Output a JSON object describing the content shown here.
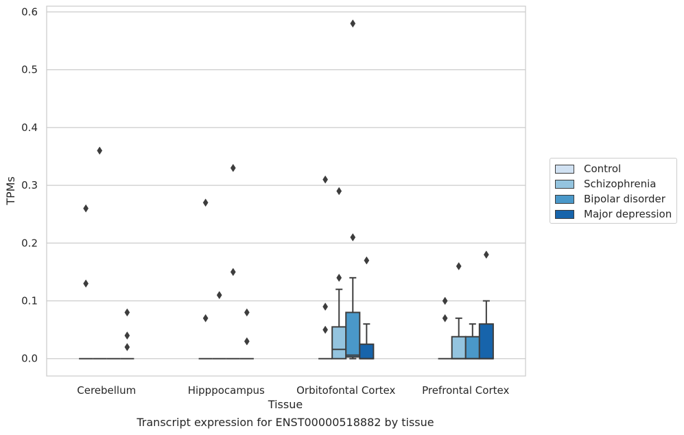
{
  "caption": "Transcript expression for ENST00000518882 by tissue",
  "chart_data": {
    "type": "boxplot",
    "xlabel": "Tissue",
    "ylabel": "TPMs",
    "ylim": [
      -0.03,
      0.61
    ],
    "yticks": [
      0.0,
      0.1,
      0.2,
      0.3,
      0.4,
      0.5,
      0.6
    ],
    "ytick_labels": [
      "0.0",
      "0.1",
      "0.2",
      "0.3",
      "0.4",
      "0.5",
      "0.6"
    ],
    "grid": "horizontal",
    "legend_position": "outside-right",
    "categories": [
      "Cerebellum",
      "Hipppocampus",
      "Orbitofontal Cortex",
      "Prefrontal Cortex"
    ],
    "series": [
      {
        "name": "Control",
        "color": "#d0e1f2",
        "boxes": [
          {
            "q1": 0,
            "median": 0,
            "q3": 0,
            "whislo": 0,
            "whishi": 0,
            "fliers": [
              0.13,
              0.26
            ]
          },
          {
            "q1": 0,
            "median": 0,
            "q3": 0,
            "whislo": 0,
            "whishi": 0,
            "fliers": [
              0.07,
              0.27
            ]
          },
          {
            "q1": 0,
            "median": 0,
            "q3": 0,
            "whislo": 0,
            "whishi": 0,
            "fliers": [
              0.05,
              0.09,
              0.31
            ]
          },
          {
            "q1": 0,
            "median": 0,
            "q3": 0,
            "whislo": 0,
            "whishi": 0,
            "fliers": [
              0.07,
              0.1
            ]
          }
        ]
      },
      {
        "name": "Schizophrenia",
        "color": "#94c4df",
        "boxes": [
          {
            "q1": 0,
            "median": 0,
            "q3": 0,
            "whislo": 0,
            "whishi": 0,
            "fliers": [
              0.36
            ]
          },
          {
            "q1": 0,
            "median": 0,
            "q3": 0,
            "whislo": 0,
            "whishi": 0,
            "fliers": [
              0.11
            ]
          },
          {
            "q1": 0,
            "median": 0.016,
            "q3": 0.055,
            "whislo": 0,
            "whishi": 0.12,
            "fliers": [
              0.14,
              0.29
            ]
          },
          {
            "q1": 0,
            "median": 0,
            "q3": 0.038,
            "whislo": 0,
            "whishi": 0.07,
            "fliers": [
              0.16
            ]
          }
        ]
      },
      {
        "name": "Bipolar disorder",
        "color": "#4a98c9",
        "boxes": [
          {
            "q1": 0,
            "median": 0,
            "q3": 0,
            "whislo": 0,
            "whishi": 0,
            "fliers": []
          },
          {
            "q1": 0,
            "median": 0,
            "q3": 0,
            "whislo": 0,
            "whishi": 0,
            "fliers": [
              0.15,
              0.33
            ]
          },
          {
            "q1": 0.003,
            "median": 0.006,
            "q3": 0.08,
            "whislo": 0,
            "whishi": 0.14,
            "fliers": [
              0.21,
              0.58
            ]
          },
          {
            "q1": 0,
            "median": 0,
            "q3": 0.038,
            "whislo": 0,
            "whishi": 0.06,
            "fliers": []
          }
        ]
      },
      {
        "name": "Major depression",
        "color": "#1764ab",
        "boxes": [
          {
            "q1": 0,
            "median": 0,
            "q3": 0,
            "whislo": 0,
            "whishi": 0,
            "fliers": [
              0.02,
              0.04,
              0.08
            ]
          },
          {
            "q1": 0,
            "median": 0,
            "q3": 0,
            "whislo": 0,
            "whishi": 0,
            "fliers": [
              0.03,
              0.08
            ]
          },
          {
            "q1": 0,
            "median": 0,
            "q3": 0.025,
            "whislo": 0,
            "whishi": 0.06,
            "fliers": [
              0.17
            ]
          },
          {
            "q1": 0,
            "median": 0,
            "q3": 0.06,
            "whislo": 0,
            "whishi": 0.1,
            "fliers": [
              0.18
            ]
          }
        ]
      }
    ]
  }
}
